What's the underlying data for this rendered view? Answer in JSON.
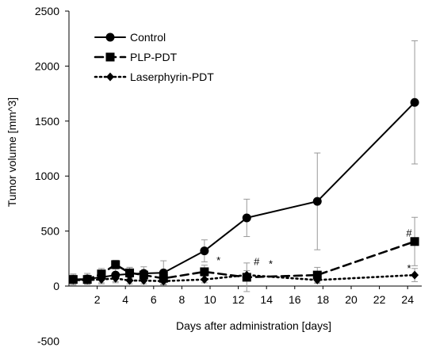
{
  "chart_data": {
    "type": "line",
    "title": "",
    "xlabel": "Days after administration [days]",
    "ylabel": "Tumor volume [mm^3]",
    "xlim": [
      0,
      25
    ],
    "ylim": [
      -500,
      2500
    ],
    "x_ticks": [
      2,
      4,
      6,
      8,
      10,
      12,
      14,
      16,
      18,
      20,
      22,
      24
    ],
    "y_ticks": [
      -500,
      0,
      500,
      1000,
      1500,
      2000,
      2500
    ],
    "grid": false,
    "legend_position": "top-left",
    "series": [
      {
        "name": "Control",
        "line_style": "solid",
        "marker": "circle",
        "color": "#000000",
        "x": [
          0.3,
          1.3,
          2.3,
          3.3,
          4.3,
          5.3,
          6.7,
          9.6,
          12.6,
          17.6,
          24.5
        ],
        "y": [
          60,
          65,
          80,
          100,
          110,
          115,
          120,
          320,
          620,
          770,
          1670
        ],
        "error": [
          50,
          50,
          60,
          60,
          60,
          60,
          110,
          100,
          170,
          440,
          560
        ]
      },
      {
        "name": "PLP-PDT",
        "line_style": "dashed",
        "marker": "square",
        "color": "#000000",
        "x": [
          0.3,
          1.3,
          2.3,
          3.3,
          4.3,
          5.3,
          6.7,
          9.6,
          12.6,
          17.6,
          24.5
        ],
        "y": [
          60,
          60,
          110,
          195,
          120,
          100,
          70,
          130,
          80,
          100,
          405
        ],
        "error": [
          40,
          40,
          50,
          40,
          50,
          40,
          50,
          60,
          130,
          70,
          220
        ]
      },
      {
        "name": "Laserphyrin-PDT",
        "line_style": "dotted",
        "marker": "diamond",
        "color": "#000000",
        "x": [
          0.3,
          1.3,
          2.3,
          3.3,
          4.3,
          5.3,
          6.7,
          9.6,
          12.6,
          17.6,
          24.5
        ],
        "y": [
          55,
          55,
          60,
          70,
          50,
          50,
          45,
          60,
          100,
          55,
          100
        ],
        "error": [
          30,
          30,
          30,
          40,
          30,
          30,
          30,
          30,
          40,
          30,
          60
        ]
      }
    ],
    "annotations": [
      {
        "text": "*",
        "x": 10.6,
        "y": 200
      },
      {
        "text": "#",
        "x": 13.3,
        "y": 190
      },
      {
        "text": "*",
        "x": 14.3,
        "y": 170
      },
      {
        "text": "#",
        "x": 24.1,
        "y": 450
      },
      {
        "text": "*",
        "x": 24.1,
        "y": 130
      }
    ]
  }
}
